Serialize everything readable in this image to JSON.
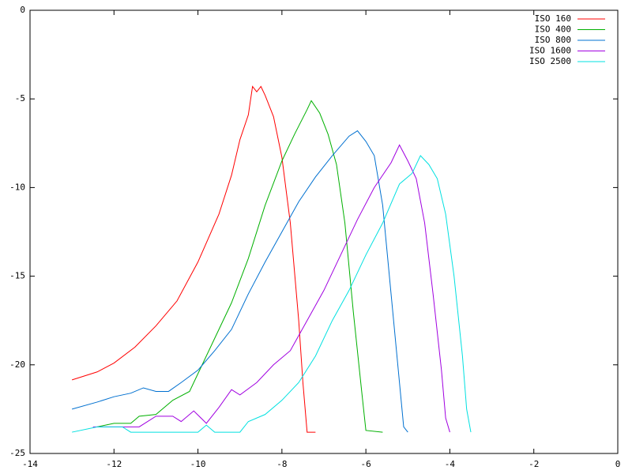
{
  "chart_data": {
    "type": "line",
    "xlim": [
      -14,
      0
    ],
    "xticks": [
      -14,
      -12,
      -10,
      -8,
      -6,
      -4,
      -2,
      0
    ],
    "ylim": [
      -25,
      0
    ],
    "yticks": [
      -25,
      -20,
      -15,
      -10,
      -5,
      0
    ],
    "legend": "top-right",
    "series": [
      {
        "name": "ISO 160",
        "color": "#ff0000",
        "x": [
          -13,
          -12.4,
          -12,
          -11.5,
          -11,
          -10.5,
          -10,
          -9.5,
          -9.2,
          -9,
          -8.8,
          -8.7,
          -8.6,
          -8.5,
          -8.4,
          -8.2,
          -8,
          -7.8,
          -7.6,
          -7.5,
          -7.4,
          -7.2
        ],
        "values": [
          -20.85,
          -20.4,
          -19.9,
          -19,
          -17.8,
          -16.4,
          -14.2,
          -11.5,
          -9.3,
          -7.3,
          -5.9,
          -4.3,
          -4.6,
          -4.3,
          -4.8,
          -6,
          -8.3,
          -12,
          -17.5,
          -21,
          -23.8,
          -23.8
        ]
      },
      {
        "name": "ISO 400",
        "color": "#00b000",
        "x": [
          -12.4,
          -12,
          -11.6,
          -11.4,
          -11,
          -10.6,
          -10.2,
          -10,
          -9.6,
          -9.2,
          -8.8,
          -8.4,
          -8,
          -7.7,
          -7.4,
          -7.3,
          -7.1,
          -6.9,
          -6.7,
          -6.5,
          -6.3,
          -6.1,
          -6,
          -5.6
        ],
        "values": [
          -23.5,
          -23.3,
          -23.3,
          -22.9,
          -22.8,
          -22,
          -21.5,
          -20.5,
          -18.5,
          -16.5,
          -14,
          -11,
          -8.5,
          -7,
          -5.6,
          -5.1,
          -5.8,
          -7,
          -8.7,
          -12,
          -17,
          -21.5,
          -23.7,
          -23.8
        ]
      },
      {
        "name": "ISO 800",
        "color": "#0070d0",
        "x": [
          -13,
          -12.4,
          -12,
          -11.6,
          -11.3,
          -11,
          -10.7,
          -10.4,
          -10,
          -9.6,
          -9.2,
          -8.8,
          -8.4,
          -8,
          -7.6,
          -7.2,
          -6.8,
          -6.4,
          -6.2,
          -6,
          -5.8,
          -5.6,
          -5.4,
          -5.2,
          -5.1,
          -5
        ],
        "values": [
          -22.5,
          -22.1,
          -21.8,
          -21.6,
          -21.3,
          -21.5,
          -21.5,
          -21,
          -20.3,
          -19.2,
          -18,
          -16,
          -14.2,
          -12.5,
          -10.8,
          -9.4,
          -8.2,
          -7.1,
          -6.8,
          -7.4,
          -8.2,
          -11,
          -16,
          -21,
          -23.5,
          -23.8
        ]
      },
      {
        "name": "ISO 1600",
        "color": "#a000e0",
        "x": [
          -12.5,
          -11.8,
          -11.4,
          -11,
          -10.6,
          -10.4,
          -10.1,
          -9.8,
          -9.5,
          -9.2,
          -9,
          -8.6,
          -8.2,
          -7.8,
          -7.4,
          -7,
          -6.6,
          -6.2,
          -5.8,
          -5.4,
          -5.2,
          -5,
          -4.8,
          -4.6,
          -4.4,
          -4.2,
          -4.1,
          -4
        ],
        "values": [
          -23.5,
          -23.5,
          -23.5,
          -22.9,
          -22.9,
          -23.2,
          -22.6,
          -23.3,
          -22.4,
          -21.4,
          -21.7,
          -21,
          -20,
          -19.2,
          -17.5,
          -15.8,
          -13.8,
          -11.8,
          -10,
          -8.6,
          -7.6,
          -8.5,
          -9.5,
          -12,
          -16,
          -20.3,
          -23,
          -23.8
        ]
      },
      {
        "name": "ISO 2500",
        "color": "#00e0e0",
        "x": [
          -13,
          -12.4,
          -11.8,
          -11.6,
          -10,
          -9.8,
          -9.6,
          -9,
          -8.8,
          -8.4,
          -8,
          -7.6,
          -7.2,
          -6.8,
          -6.4,
          -6,
          -5.6,
          -5.2,
          -4.9,
          -4.7,
          -4.5,
          -4.3,
          -4.1,
          -3.9,
          -3.7,
          -3.6,
          -3.5
        ],
        "values": [
          -23.8,
          -23.5,
          -23.5,
          -23.8,
          -23.8,
          -23.4,
          -23.8,
          -23.8,
          -23.2,
          -22.8,
          -22,
          -21,
          -19.5,
          -17.5,
          -15.8,
          -13.8,
          -12,
          -9.8,
          -9.2,
          -8.2,
          -8.7,
          -9.5,
          -11.5,
          -15,
          -19.5,
          -22.5,
          -23.8
        ]
      }
    ]
  }
}
